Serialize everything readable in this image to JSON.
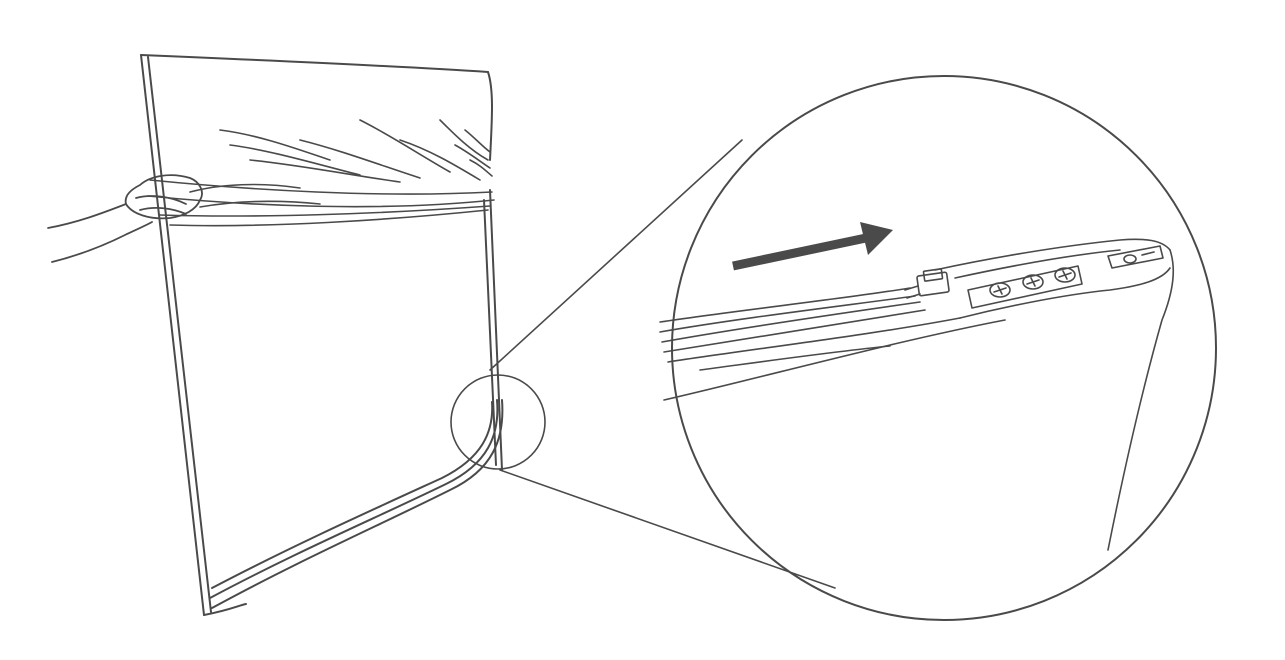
{
  "colors": {
    "background": "#ffffff",
    "line": "#4a4a4a",
    "arrow": "#4a4a4a"
  },
  "icons": {
    "bag": "bag-outline-icon",
    "hand": "hand-gripping-icon",
    "gathered_top": "gathered-fabric-icon",
    "detail_marker": "small-circle-marker-icon",
    "magnifier": "magnified-detail-circle-icon",
    "arrow": "right-arrow-icon",
    "zip_slider": "zip-slider-icon",
    "screws": "screw-head-icon",
    "end_connector": "end-connector-icon"
  },
  "diagram": {
    "direction": "pull-right",
    "screw_count": 3
  }
}
